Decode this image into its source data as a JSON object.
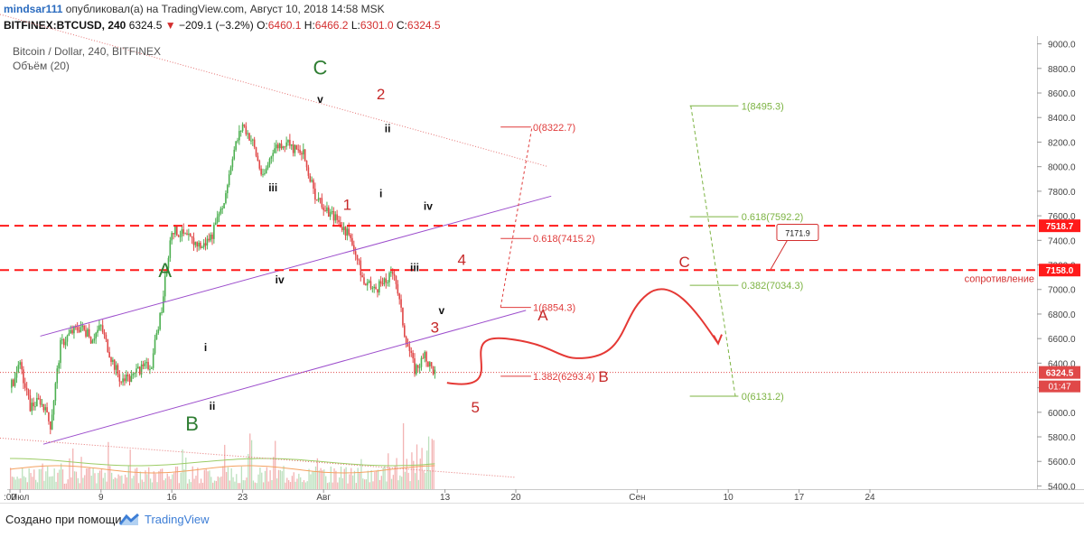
{
  "header": {
    "author": "mindsar111",
    "published": " опубликовал(а) на TradingView.com, Август 10, 2018 14:58 MSK",
    "symbol": "BITFINEX:BTCUSD, 240",
    "last": "6324.5",
    "change": "−209.1 (−3.2%)",
    "o_label": "O:",
    "o_val": "6460.1",
    "h_label": "H:",
    "h_val": "6466.2",
    "l_label": "L:",
    "l_val": "6301.0",
    "c_label": "C:",
    "c_val": "6324.5",
    "subtitle": "Bitcoin / Dollar, 240, BITFINEX",
    "volume_label": "Объём (20)"
  },
  "footer": {
    "created_with": "Создано при помощи",
    "brand": "TradingView"
  },
  "colors": {
    "up": "#4caf50",
    "down": "#e04848",
    "channel": "#9c4dcc",
    "resistance": "#ff1a1a",
    "fib_red": "#e03b3b",
    "fib_green": "#7cb342",
    "wave_green": "#2e7d32",
    "wave_red": "#c62828"
  },
  "chart_data": {
    "type": "candlestick",
    "y_axis": {
      "min": 5400,
      "max": 9000,
      "step": 200,
      "ticks": [
        "9000.0",
        "8800.0",
        "8600.0",
        "8400.0",
        "8200.0",
        "8000.0",
        "7800.0",
        "7600.0",
        "7400.0",
        "7200.0",
        "7000.0",
        "6800.0",
        "6600.0",
        "6400.0",
        "6200.0",
        "6000.0",
        "5800.0",
        "5600.0",
        "5400.0"
      ]
    },
    "x_axis": {
      "ticks": [
        {
          "label": ":00",
          "day": 0
        },
        {
          "label": "Июл",
          "day": 1
        },
        {
          "label": "9",
          "day": 9
        },
        {
          "label": "16",
          "day": 16
        },
        {
          "label": "23",
          "day": 23
        },
        {
          "label": "Авг",
          "day": 31
        },
        {
          "label": "13",
          "day": 43
        },
        {
          "label": "20",
          "day": 50
        },
        {
          "label": "Сен",
          "day": 62
        },
        {
          "label": "10",
          "day": 71
        },
        {
          "label": "17",
          "day": 78
        },
        {
          "label": "24",
          "day": 85
        }
      ]
    },
    "price_path": [
      [
        0,
        6200
      ],
      [
        1,
        6370
      ],
      [
        2,
        6050
      ],
      [
        3,
        6100
      ],
      [
        4,
        5900
      ],
      [
        5,
        6550
      ],
      [
        6,
        6650
      ],
      [
        7,
        6700
      ],
      [
        8,
        6600
      ],
      [
        9,
        6700
      ],
      [
        10,
        6450
      ],
      [
        11,
        6250
      ],
      [
        12,
        6280
      ],
      [
        13,
        6350
      ],
      [
        14,
        6400
      ],
      [
        15,
        6850
      ],
      [
        16,
        7500
      ],
      [
        17,
        7450
      ],
      [
        18,
        7400
      ],
      [
        19,
        7350
      ],
      [
        20,
        7450
      ],
      [
        21,
        7650
      ],
      [
        22,
        8100
      ],
      [
        23,
        8350
      ],
      [
        24,
        8200
      ],
      [
        25,
        7900
      ],
      [
        26,
        8150
      ],
      [
        27,
        8200
      ],
      [
        28,
        8150
      ],
      [
        29,
        8100
      ],
      [
        30,
        7800
      ],
      [
        31,
        7650
      ],
      [
        32,
        7600
      ],
      [
        33,
        7500
      ],
      [
        34,
        7350
      ],
      [
        35,
        7050
      ],
      [
        36,
        7000
      ],
      [
        37,
        7050
      ],
      [
        38,
        7150
      ],
      [
        39,
        6650
      ],
      [
        40,
        6350
      ],
      [
        41,
        6450
      ],
      [
        42,
        6324.5
      ]
    ],
    "volume_label": "Объём (20)",
    "horizontal_levels": [
      {
        "price": 7518.7,
        "label": "7518.7"
      },
      {
        "price": 7158.0,
        "label": "7158.0"
      }
    ],
    "last_price": {
      "price": 6324.5,
      "label": "6324.5",
      "timer": "01:47"
    },
    "callout": {
      "label": "7171.9"
    },
    "resistance_label": "сопротивление",
    "fib_red": [
      {
        "level": "0",
        "price": 8322.7,
        "label": "0(8322.7)"
      },
      {
        "level": "0.618",
        "price": 7415.2,
        "label": "0.618(7415.2)"
      },
      {
        "level": "1",
        "price": 6854.3,
        "label": "1(6854.3)"
      },
      {
        "level": "1.382",
        "price": 6293.4,
        "label": "1.382(6293.4)"
      }
    ],
    "fib_green": [
      {
        "level": "1",
        "price": 8495.3,
        "label": "1(8495.3)"
      },
      {
        "level": "0.618",
        "price": 7592.2,
        "label": "0.618(7592.2)"
      },
      {
        "level": "0.382",
        "price": 7034.3,
        "label": "0.382(7034.3)"
      },
      {
        "level": "0",
        "price": 6131.2,
        "label": "0(6131.2)"
      }
    ],
    "wave_labels": [
      {
        "text": "A",
        "day": 23,
        "price": 7100,
        "color": "green",
        "size": "big"
      },
      {
        "text": "B",
        "day": 27,
        "price": 5850,
        "color": "green",
        "size": "big"
      },
      {
        "text": "C",
        "day": 46,
        "price": 8750,
        "color": "green",
        "size": "big"
      },
      {
        "text": "v",
        "day": 46,
        "price": 8520,
        "color": "black",
        "size": "small"
      },
      {
        "text": "iii",
        "day": 39,
        "price": 7800,
        "color": "black",
        "size": "small"
      },
      {
        "text": "iv",
        "day": 40,
        "price": 7050,
        "color": "black",
        "size": "small"
      },
      {
        "text": "i",
        "day": 29,
        "price": 6500,
        "color": "black",
        "size": "small"
      },
      {
        "text": "ii",
        "day": 30,
        "price": 6020,
        "color": "black",
        "size": "small"
      },
      {
        "text": "2",
        "day": 55,
        "price": 8550,
        "color": "red",
        "size": "big"
      },
      {
        "text": "ii",
        "day": 56,
        "price": 8280,
        "color": "black",
        "size": "small"
      },
      {
        "text": "1",
        "day": 50,
        "price": 7650,
        "color": "red",
        "size": "big"
      },
      {
        "text": "i",
        "day": 55,
        "price": 7750,
        "color": "black",
        "size": "small"
      },
      {
        "text": "iv",
        "day": 62,
        "price": 7650,
        "color": "black",
        "size": "small"
      },
      {
        "text": "iii",
        "day": 60,
        "price": 7150,
        "color": "black",
        "size": "small"
      },
      {
        "text": "4",
        "day": 67,
        "price": 7200,
        "color": "red",
        "size": "big"
      },
      {
        "text": "v",
        "day": 64,
        "price": 6800,
        "color": "black",
        "size": "small"
      },
      {
        "text": "3",
        "day": 63,
        "price": 6650,
        "color": "red",
        "size": "big"
      },
      {
        "text": "5",
        "day": 69,
        "price": 6000,
        "color": "red",
        "size": "big"
      },
      {
        "text": "A",
        "day": 79,
        "price": 6750,
        "color": "red",
        "size": "big"
      },
      {
        "text": "B",
        "day": 88,
        "price": 6250,
        "color": "red",
        "size": "big"
      },
      {
        "text": "C",
        "day": 100,
        "price": 7180,
        "color": "red",
        "size": "big"
      }
    ]
  }
}
